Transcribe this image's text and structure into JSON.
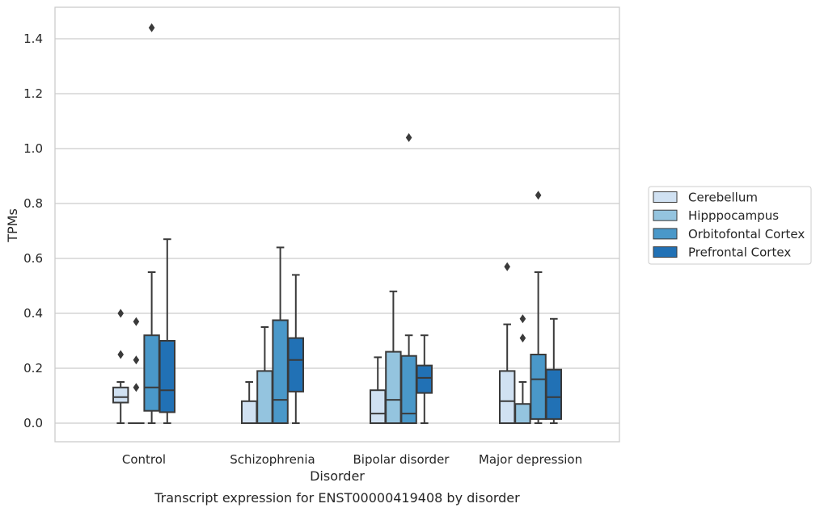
{
  "chart_data": {
    "type": "box",
    "caption": "Transcript expression for ENST00000419408 by disorder",
    "xlabel": "Disorder",
    "ylabel": "TPMs",
    "ylim": [
      -0.07,
      1.51
    ],
    "yticks": [
      0.0,
      0.2,
      0.4,
      0.6,
      0.8,
      1.0,
      1.2,
      1.4
    ],
    "ytick_labels": [
      "0.0",
      "0.2",
      "0.4",
      "0.6",
      "0.8",
      "1.0",
      "1.2",
      "1.4"
    ],
    "grid": "horizontal",
    "legend_position": "outside-right",
    "categories": [
      "Control",
      "Schizophrenia",
      "Bipolar disorder",
      "Major depression"
    ],
    "series": [
      {
        "name": "Cerebellum",
        "color": "#d0e1f2",
        "boxes": [
          {
            "whisker_low": 0.0,
            "q1": 0.075,
            "median": 0.095,
            "q3": 0.13,
            "whisker_high": 0.15,
            "outliers": [
              0.25,
              0.4
            ]
          },
          {
            "whisker_low": 0.0,
            "q1": 0.0,
            "median": 0.0,
            "q3": 0.08,
            "whisker_high": 0.15,
            "outliers": []
          },
          {
            "whisker_low": 0.0,
            "q1": 0.0,
            "median": 0.035,
            "q3": 0.12,
            "whisker_high": 0.24,
            "outliers": []
          },
          {
            "whisker_low": 0.0,
            "q1": 0.0,
            "median": 0.08,
            "q3": 0.19,
            "whisker_high": 0.36,
            "outliers": [
              0.57
            ]
          }
        ]
      },
      {
        "name": "Hipppocampus",
        "color": "#94c4df",
        "boxes": [
          {
            "whisker_low": 0.0,
            "q1": 0.0,
            "median": 0.0,
            "q3": 0.0,
            "whisker_high": 0.0,
            "outliers": [
              0.13,
              0.23,
              0.37
            ]
          },
          {
            "whisker_low": 0.0,
            "q1": 0.0,
            "median": 0.0,
            "q3": 0.19,
            "whisker_high": 0.35,
            "outliers": []
          },
          {
            "whisker_low": 0.0,
            "q1": 0.0,
            "median": 0.085,
            "q3": 0.26,
            "whisker_high": 0.48,
            "outliers": []
          },
          {
            "whisker_low": 0.0,
            "q1": 0.0,
            "median": 0.0,
            "q3": 0.07,
            "whisker_high": 0.15,
            "outliers": [
              0.31,
              0.38
            ]
          }
        ]
      },
      {
        "name": "Orbitofontal Cortex",
        "color": "#4a98c9",
        "boxes": [
          {
            "whisker_low": 0.0,
            "q1": 0.045,
            "median": 0.13,
            "q3": 0.32,
            "whisker_high": 0.55,
            "outliers": [
              1.44
            ]
          },
          {
            "whisker_low": 0.0,
            "q1": 0.0,
            "median": 0.085,
            "q3": 0.375,
            "whisker_high": 0.64,
            "outliers": []
          },
          {
            "whisker_low": 0.0,
            "q1": 0.0,
            "median": 0.035,
            "q3": 0.245,
            "whisker_high": 0.32,
            "outliers": [
              1.04
            ]
          },
          {
            "whisker_low": 0.0,
            "q1": 0.015,
            "median": 0.16,
            "q3": 0.25,
            "whisker_high": 0.55,
            "outliers": [
              0.83
            ]
          }
        ]
      },
      {
        "name": "Prefrontal Cortex",
        "color": "#2171b5",
        "boxes": [
          {
            "whisker_low": 0.0,
            "q1": 0.04,
            "median": 0.12,
            "q3": 0.3,
            "whisker_high": 0.67,
            "outliers": []
          },
          {
            "whisker_low": 0.0,
            "q1": 0.115,
            "median": 0.23,
            "q3": 0.31,
            "whisker_high": 0.54,
            "outliers": []
          },
          {
            "whisker_low": 0.0,
            "q1": 0.11,
            "median": 0.165,
            "q3": 0.21,
            "whisker_high": 0.32,
            "outliers": []
          },
          {
            "whisker_low": 0.0,
            "q1": 0.015,
            "median": 0.095,
            "q3": 0.195,
            "whisker_high": 0.38,
            "outliers": []
          }
        ]
      }
    ]
  },
  "colors": {
    "line": "#3a3a3a",
    "grid": "#cccccc",
    "frame": "#cccccc"
  }
}
